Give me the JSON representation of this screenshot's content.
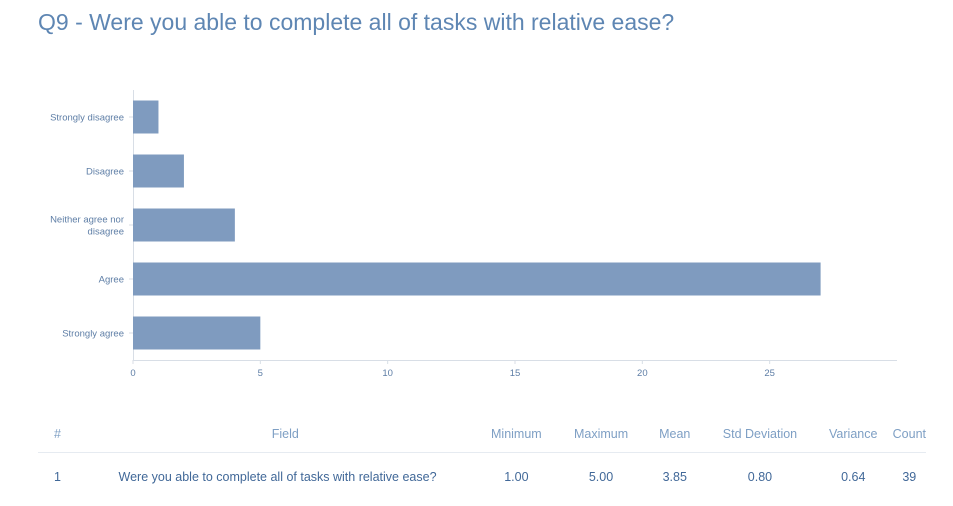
{
  "title": "Q9 - Were you able to complete all of tasks with relative ease?",
  "chart_data": {
    "type": "bar",
    "orientation": "horizontal",
    "categories": [
      [
        "Strongly disagree"
      ],
      [
        "Disagree"
      ],
      [
        "Neither agree nor",
        "disagree"
      ],
      [
        "Agree"
      ],
      [
        "Strongly agree"
      ]
    ],
    "values": [
      1,
      2,
      4,
      27,
      5
    ],
    "xlim": [
      0,
      30
    ],
    "xticks": [
      0,
      5,
      10,
      15,
      20,
      25
    ],
    "grid": false,
    "bar_color": "#7f9bbf"
  },
  "table": {
    "headers": [
      "#",
      "Field",
      "Minimum",
      "Maximum",
      "Mean",
      "Std Deviation",
      "Variance",
      "Count"
    ],
    "rows": [
      [
        "1",
        "Were you able to complete all of tasks with relative ease?",
        "1.00",
        "5.00",
        "3.85",
        "0.80",
        "0.64",
        "39"
      ]
    ]
  }
}
